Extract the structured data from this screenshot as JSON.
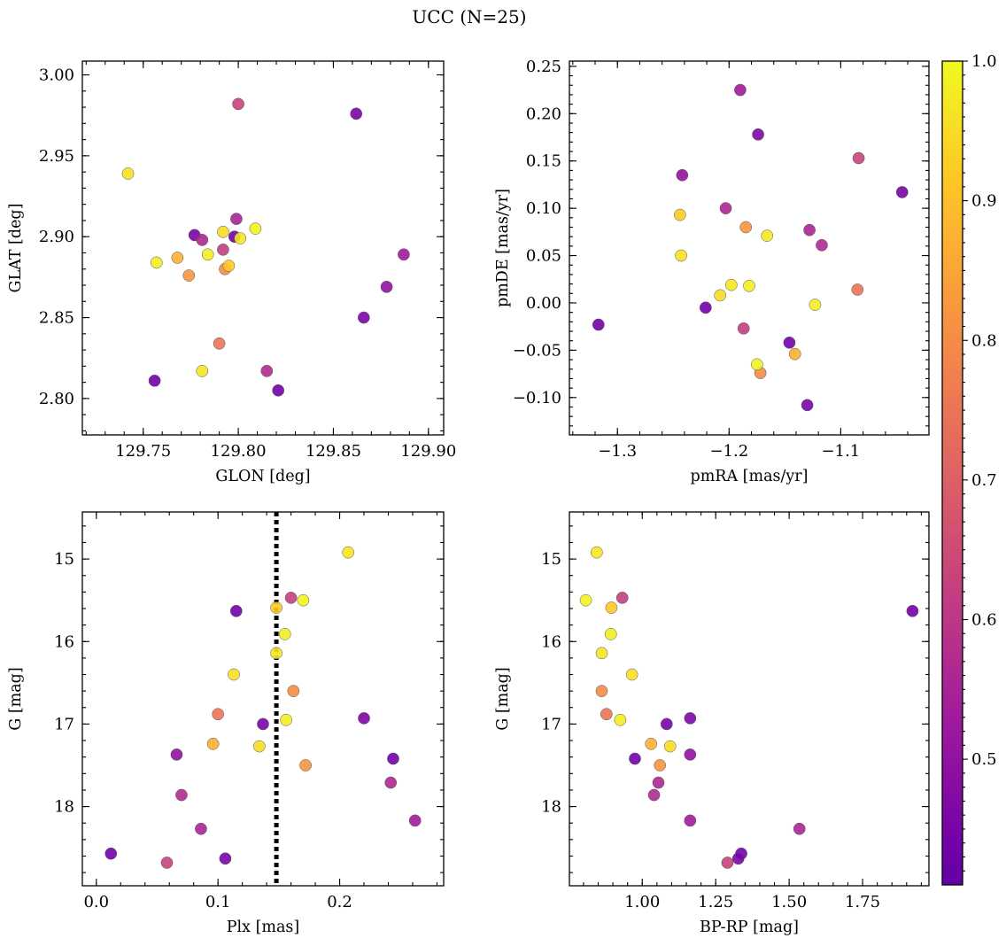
{
  "title": "UCC (N=25)",
  "colormap": {
    "name": "plasma",
    "range": [
      0.41,
      1.0
    ],
    "stops": [
      "#0d0887",
      "#46039f",
      "#7201a8",
      "#9c179e",
      "#bd3786",
      "#d8576b",
      "#ed7953",
      "#fb9f3a",
      "#fdca26",
      "#f0f921"
    ],
    "truncate_lower": 0.18,
    "ticks": [
      "0.5",
      "0.6",
      "0.7",
      "0.8",
      "0.9",
      "1.0"
    ]
  },
  "stars": [
    {
      "glon": 129.742,
      "glat": 2.939,
      "pmra": -1.243,
      "pmde": 0.05,
      "plx": 0.113,
      "g": 16.4,
      "bprp": 0.965,
      "p": 0.96
    },
    {
      "glon": 129.757,
      "glat": 2.884,
      "pmra": -1.182,
      "pmde": 0.018,
      "plx": 0.155,
      "g": 15.91,
      "bprp": 0.893,
      "p": 0.98
    },
    {
      "glon": 129.768,
      "glat": 2.887,
      "pmra": -1.141,
      "pmde": -0.054,
      "plx": 0.096,
      "g": 17.24,
      "bprp": 1.03,
      "p": 0.87
    },
    {
      "glon": 129.774,
      "glat": 2.876,
      "pmra": -1.185,
      "pmde": 0.08,
      "plx": 0.172,
      "g": 17.5,
      "bprp": 1.06,
      "p": 0.82
    },
    {
      "glon": 129.777,
      "glat": 2.901,
      "pmra": -1.13,
      "pmde": -0.108,
      "plx": 0.137,
      "g": 17.0,
      "bprp": 1.083,
      "p": 0.45
    },
    {
      "glon": 129.781,
      "glat": 2.898,
      "pmra": -1.203,
      "pmde": 0.1,
      "plx": 0.242,
      "g": 17.71,
      "bprp": 1.055,
      "p": 0.56
    },
    {
      "glon": 129.781,
      "glat": 2.817,
      "pmra": -1.166,
      "pmde": 0.071,
      "plx": 0.148,
      "g": 16.14,
      "bprp": 0.862,
      "p": 0.97
    },
    {
      "glon": 129.784,
      "glat": 2.889,
      "pmra": -1.123,
      "pmde": -0.002,
      "plx": 0.156,
      "g": 16.95,
      "bprp": 0.925,
      "p": 0.98
    },
    {
      "glon": 129.79,
      "glat": 2.834,
      "pmra": -1.085,
      "pmde": 0.014,
      "plx": 0.1,
      "g": 16.88,
      "bprp": 0.878,
      "p": 0.75
    },
    {
      "glon": 129.792,
      "glat": 2.903,
      "pmra": -1.208,
      "pmde": 0.008,
      "plx": 0.134,
      "g": 17.27,
      "bprp": 1.095,
      "p": 0.95
    },
    {
      "glon": 129.792,
      "glat": 2.892,
      "pmra": -1.187,
      "pmde": -0.027,
      "plx": 0.16,
      "g": 15.47,
      "bprp": 0.932,
      "p": 0.62
    },
    {
      "glon": 129.793,
      "glat": 2.88,
      "pmra": -1.172,
      "pmde": -0.074,
      "plx": 0.162,
      "g": 16.6,
      "bprp": 0.862,
      "p": 0.8
    },
    {
      "glon": 129.795,
      "glat": 2.882,
      "pmra": -1.244,
      "pmde": 0.093,
      "plx": 0.148,
      "g": 15.59,
      "bprp": 0.895,
      "p": 0.92
    },
    {
      "glon": 129.798,
      "glat": 2.9,
      "pmra": -1.221,
      "pmde": -0.005,
      "plx": 0.115,
      "g": 15.63,
      "bprp": 1.92,
      "p": 0.44
    },
    {
      "glon": 129.799,
      "glat": 2.911,
      "pmra": -1.128,
      "pmde": 0.077,
      "plx": 0.086,
      "g": 18.27,
      "bprp": 1.535,
      "p": 0.55
    },
    {
      "glon": 129.8,
      "glat": 2.982,
      "pmra": -1.084,
      "pmde": 0.153,
      "plx": 0.058,
      "g": 18.68,
      "bprp": 1.29,
      "p": 0.63
    },
    {
      "glon": 129.801,
      "glat": 2.899,
      "pmra": -1.198,
      "pmde": 0.019,
      "plx": 0.207,
      "g": 14.92,
      "bprp": 0.845,
      "p": 0.97
    },
    {
      "glon": 129.809,
      "glat": 2.905,
      "pmra": -1.175,
      "pmde": -0.065,
      "plx": 0.17,
      "g": 15.5,
      "bprp": 0.808,
      "p": 0.99
    },
    {
      "glon": 129.815,
      "glat": 2.817,
      "pmra": -1.117,
      "pmde": 0.061,
      "plx": 0.07,
      "g": 17.86,
      "bprp": 1.04,
      "p": 0.57
    },
    {
      "glon": 129.821,
      "glat": 2.805,
      "pmra": -1.146,
      "pmde": -0.042,
      "plx": 0.244,
      "g": 17.42,
      "bprp": 0.975,
      "p": 0.44
    },
    {
      "glon": 129.756,
      "glat": 2.811,
      "pmra": -1.317,
      "pmde": -0.023,
      "plx": 0.012,
      "g": 18.57,
      "bprp": 1.337,
      "p": 0.44
    },
    {
      "glon": 129.862,
      "glat": 2.976,
      "pmra": -1.045,
      "pmde": 0.117,
      "plx": 0.106,
      "g": 18.63,
      "bprp": 1.327,
      "p": 0.45
    },
    {
      "glon": 129.866,
      "glat": 2.85,
      "pmra": -1.174,
      "pmde": 0.178,
      "plx": 0.22,
      "g": 16.93,
      "bprp": 1.163,
      "p": 0.46
    },
    {
      "glon": 129.878,
      "glat": 2.869,
      "pmra": -1.242,
      "pmde": 0.135,
      "plx": 0.066,
      "g": 17.37,
      "bprp": 1.163,
      "p": 0.5
    },
    {
      "glon": 129.887,
      "glat": 2.889,
      "pmra": -1.19,
      "pmde": 0.225,
      "plx": 0.262,
      "g": 18.17,
      "bprp": 1.163,
      "p": 0.53
    }
  ],
  "chart_data": [
    {
      "type": "scatter",
      "x_field": "glon",
      "y_field": "glat",
      "xlabel": "GLON [deg]",
      "ylabel": "GLAT [deg]",
      "xlim": [
        129.718,
        129.908
      ],
      "ylim": [
        2.7775,
        3.0085
      ],
      "xticks": [
        129.75,
        129.8,
        129.85,
        129.9
      ],
      "xtick_labels": [
        "129.75",
        "129.80",
        "129.85",
        "129.90"
      ],
      "yticks": [
        2.8,
        2.85,
        2.9,
        2.95,
        3.0
      ],
      "ytick_labels": [
        "2.80",
        "2.85",
        "2.90",
        "2.95",
        "3.00"
      ],
      "xminor": 0.01,
      "yminor": 0.01,
      "invert_y": false
    },
    {
      "type": "scatter",
      "x_field": "pmra",
      "y_field": "pmde",
      "xlabel": "pmRA [mas/yr]",
      "ylabel": "pmDE [mas/yr]",
      "xlim": [
        -1.343,
        -1.021
      ],
      "ylim": [
        -0.1395,
        0.2555
      ],
      "xticks": [
        -1.3,
        -1.2,
        -1.1
      ],
      "xtick_labels": [
        "−1.3",
        "−1.2",
        "−1.1"
      ],
      "yticks": [
        -0.1,
        -0.05,
        0.0,
        0.05,
        0.1,
        0.15,
        0.2,
        0.25
      ],
      "ytick_labels": [
        "−0.10",
        "−0.05",
        "0.00",
        "0.05",
        "0.10",
        "0.15",
        "0.20",
        "0.25"
      ],
      "xminor": 0.02,
      "yminor": 0.01,
      "invert_y": false
    },
    {
      "type": "scatter",
      "x_field": "plx",
      "y_field": "g",
      "xlabel": "Plx [mas]",
      "ylabel": "G [mag]",
      "xlim": [
        -0.0115,
        0.2855
      ],
      "ylim": [
        14.43,
        18.96
      ],
      "xticks": [
        0.0,
        0.1,
        0.2
      ],
      "xtick_labels": [
        "0.0",
        "0.1",
        "0.2"
      ],
      "yticks": [
        15,
        16,
        17,
        18
      ],
      "ytick_labels": [
        "15",
        "16",
        "17",
        "18"
      ],
      "xminor": 0.02,
      "yminor": 0.2,
      "invert_y": true,
      "vline": {
        "x": 0.148,
        "style": "dotted"
      }
    },
    {
      "type": "scatter",
      "x_field": "bprp",
      "y_field": "g",
      "xlabel": "BP-RP [mag]",
      "ylabel": "G [mag]",
      "xlim": [
        0.752,
        1.976
      ],
      "ylim": [
        14.43,
        18.96
      ],
      "xticks": [
        1.0,
        1.25,
        1.5,
        1.75
      ],
      "xtick_labels": [
        "1.00",
        "1.25",
        "1.50",
        "1.75"
      ],
      "yticks": [
        15,
        16,
        17,
        18
      ],
      "ytick_labels": [
        "15",
        "16",
        "17",
        "18"
      ],
      "xminor": 0.05,
      "yminor": 0.2,
      "invert_y": true
    }
  ]
}
